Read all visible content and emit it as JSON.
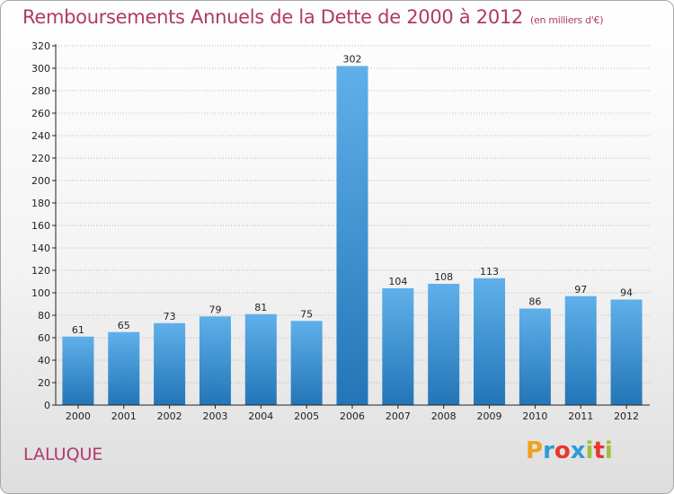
{
  "title": "Remboursements Annuels de la Dette de 2000 à 2012",
  "subtitle": "(en milliers d'€)",
  "place": "LALUQUE",
  "brand": {
    "letters": [
      "P",
      "r",
      "o",
      "x",
      "i",
      "t",
      "i"
    ],
    "colors": [
      "#f0a21d",
      "#2e9bd6",
      "#e8372f",
      "#2e9bd6",
      "#9bc23c",
      "#e8372f",
      "#9bc23c"
    ]
  },
  "colors": {
    "title": "#b0396a",
    "bar_light": "#5fb0ea",
    "bar_dark": "#2375b7",
    "axis": "#222222",
    "grid": "#b8b8b8"
  },
  "chart_data": {
    "type": "bar",
    "categories": [
      "2000",
      "2001",
      "2002",
      "2003",
      "2004",
      "2005",
      "2006",
      "2007",
      "2008",
      "2009",
      "2010",
      "2011",
      "2012"
    ],
    "values": [
      61,
      65,
      73,
      79,
      81,
      75,
      302,
      104,
      108,
      113,
      86,
      97,
      94
    ],
    "ylim": [
      0,
      320
    ],
    "ytick_step": 20,
    "grid": true,
    "xlabel": "",
    "ylabel": ""
  }
}
